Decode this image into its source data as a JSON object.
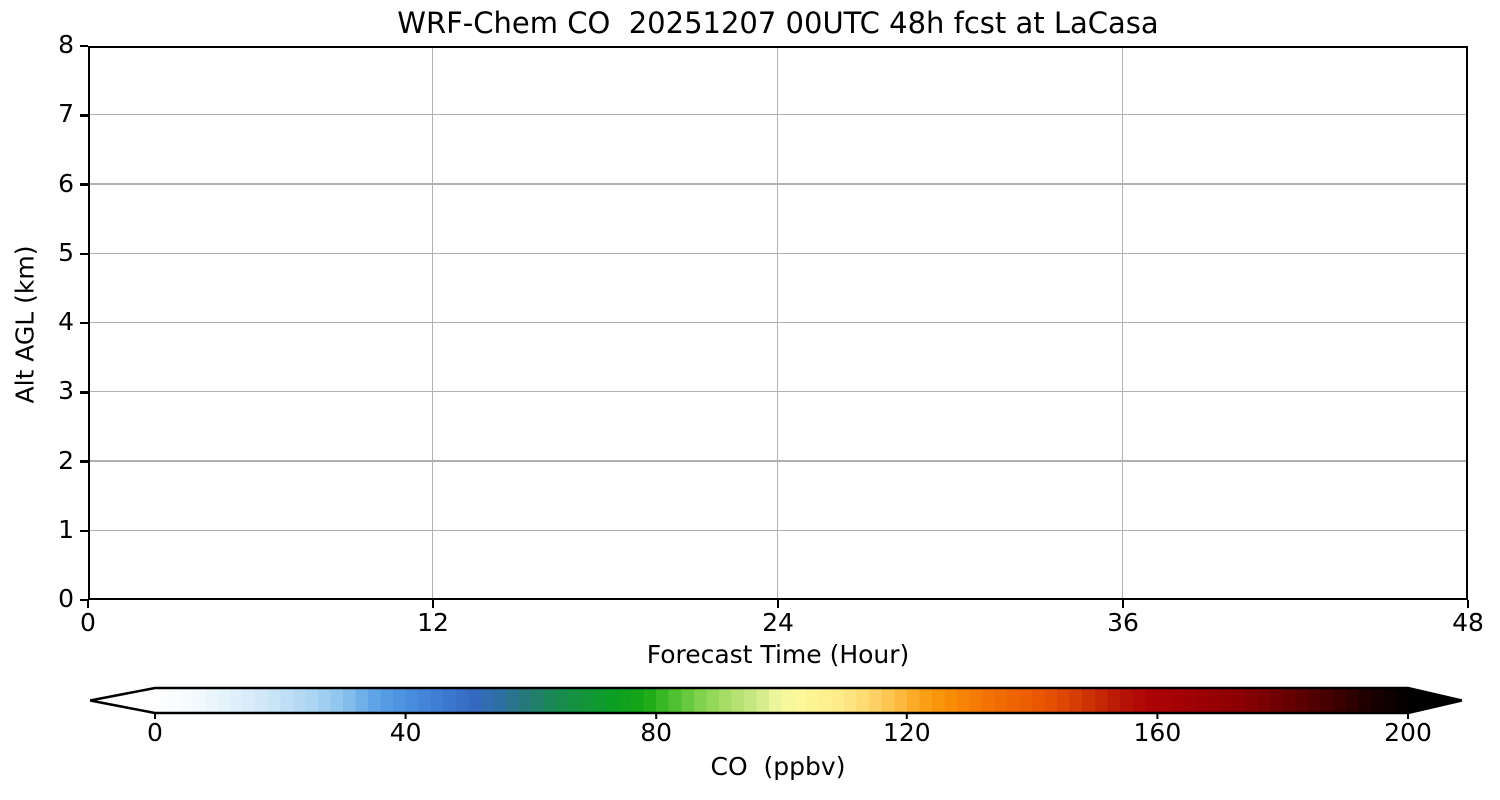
{
  "figure": {
    "background": "#ffffff"
  },
  "chart_data": {
    "type": "heatmap",
    "title": "WRF-Chem CO  20251207 00UTC 48h fcst at LaCasa",
    "xlabel": "Forecast Time (Hour)",
    "ylabel": "Alt AGL (km)",
    "xlim": [
      0,
      48
    ],
    "ylim": [
      0,
      8
    ],
    "xticks": [
      0,
      12,
      24,
      36,
      48
    ],
    "yticks": [
      0,
      1,
      2,
      3,
      4,
      5,
      6,
      7,
      8
    ],
    "grid": true,
    "grid_color": "#b0b0b0",
    "spine_color": "#000000",
    "plot_background": "#ffffff",
    "data_points": [],
    "colorbar": {
      "label": "CO  (ppbv)",
      "ticks": [
        0,
        40,
        80,
        120,
        160,
        200
      ],
      "tick_labels": [
        "0",
        "40",
        "80",
        "120",
        "160",
        "200"
      ],
      "vmin": 0,
      "vmax": 200,
      "extend": "both",
      "under_color": "#ffffff",
      "over_color": "#000000",
      "outline_color": "#000000",
      "steps": 100,
      "stops": [
        [
          0,
          "#ffffff"
        ],
        [
          6,
          "#f4fafd"
        ],
        [
          12,
          "#e2f1fb"
        ],
        [
          18,
          "#cde6f8"
        ],
        [
          24,
          "#b1d8f3"
        ],
        [
          30,
          "#8cc3ee"
        ],
        [
          35,
          "#5ea4e6"
        ],
        [
          40,
          "#4a90e0"
        ],
        [
          46,
          "#3d7ad3"
        ],
        [
          51,
          "#3569bf"
        ],
        [
          55,
          "#2e6fa3"
        ],
        [
          59,
          "#26797b"
        ],
        [
          63,
          "#1b8758"
        ],
        [
          68,
          "#13943c"
        ],
        [
          73,
          "#0c9f26"
        ],
        [
          78,
          "#16a714"
        ],
        [
          83,
          "#4fc130"
        ],
        [
          88,
          "#8cd653"
        ],
        [
          93,
          "#b5e273"
        ],
        [
          96,
          "#cdea85"
        ],
        [
          99,
          "#ecf49c"
        ],
        [
          102,
          "#fdfa9b"
        ],
        [
          106,
          "#fef291"
        ],
        [
          110,
          "#fee987"
        ],
        [
          114,
          "#fdd76e"
        ],
        [
          118,
          "#fdc04a"
        ],
        [
          122,
          "#fca41c"
        ],
        [
          126,
          "#f99105"
        ],
        [
          130,
          "#f67f04"
        ],
        [
          134,
          "#f26e03"
        ],
        [
          138,
          "#ee6102"
        ],
        [
          142,
          "#e75301"
        ],
        [
          146,
          "#da4203"
        ],
        [
          150,
          "#c92d05"
        ],
        [
          154,
          "#b81506"
        ],
        [
          158,
          "#ae0506"
        ],
        [
          163,
          "#a50205"
        ],
        [
          168,
          "#990004"
        ],
        [
          173,
          "#8c0003"
        ],
        [
          178,
          "#760002"
        ],
        [
          183,
          "#5c0001"
        ],
        [
          188,
          "#400000"
        ],
        [
          193,
          "#220000"
        ],
        [
          197,
          "#0e0000"
        ],
        [
          200,
          "#020000"
        ]
      ]
    }
  }
}
